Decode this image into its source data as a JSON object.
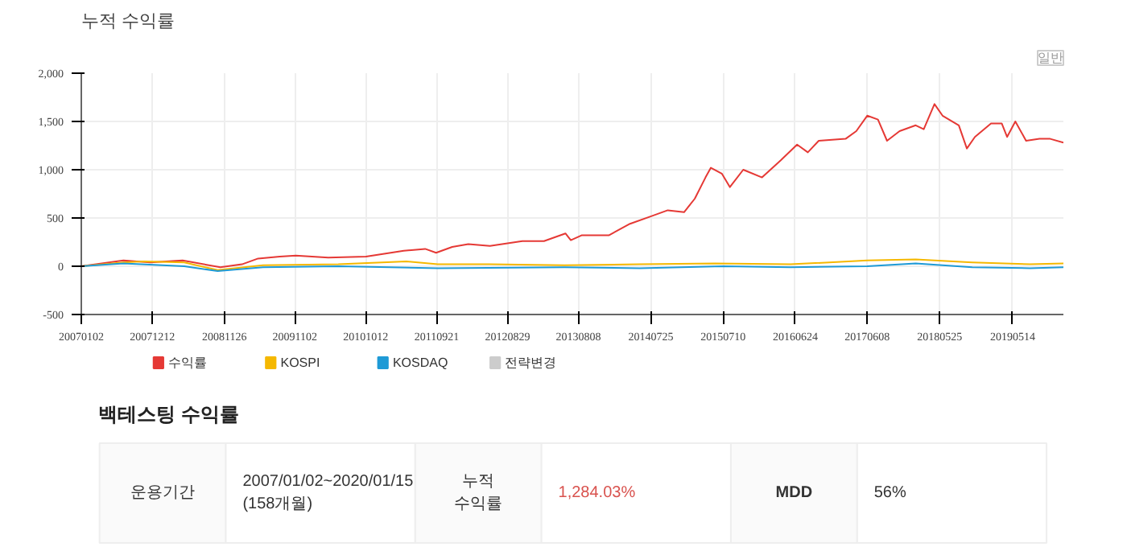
{
  "chart_data": {
    "type": "line",
    "title": "누적 수익률",
    "xlim": [
      "2007-01-02",
      "2020-01-15"
    ],
    "xticks": [
      {
        "value": "2007-01-02",
        "label": "20070102"
      },
      {
        "value": "2007-12-12",
        "label": "20071212"
      },
      {
        "value": "2008-11-26",
        "label": "20081126"
      },
      {
        "value": "2009-11-02",
        "label": "20091102"
      },
      {
        "value": "2010-10-12",
        "label": "20101012"
      },
      {
        "value": "2011-09-21",
        "label": "20110921"
      },
      {
        "value": "2012-08-29",
        "label": "20120829"
      },
      {
        "value": "2013-08-08",
        "label": "20130808"
      },
      {
        "value": "2014-07-25",
        "label": "20140725"
      },
      {
        "value": "2015-07-10",
        "label": "20150710"
      },
      {
        "value": "2016-06-24",
        "label": "20160624"
      },
      {
        "value": "2017-06-08",
        "label": "20170608"
      },
      {
        "value": "2018-05-25",
        "label": "20180525"
      },
      {
        "value": "2019-05-14",
        "label": "20190514"
      }
    ],
    "ylim": [
      -500,
      2000
    ],
    "yticks": [
      {
        "value": -500,
        "label": "-500"
      },
      {
        "value": 0,
        "label": "0"
      },
      {
        "value": 500,
        "label": "500"
      },
      {
        "value": 1000,
        "label": "1,000"
      },
      {
        "value": 1500,
        "label": "1,500"
      },
      {
        "value": 2000,
        "label": "2,000"
      }
    ],
    "grid": true,
    "legend": "bottom",
    "line_style": "solid",
    "marker": "none",
    "series": [
      {
        "name": "수익률",
        "color": "#e53935",
        "x": [
          "2007-01-02",
          "2007-07-25",
          "2007-12-02",
          "2008-05-07",
          "2008-11-06",
          "2009-02-19",
          "2009-05-08",
          "2009-08-21",
          "2009-11-07",
          "2010-04-13",
          "2010-10-13",
          "2011-04-14",
          "2011-07-27",
          "2011-09-18",
          "2011-12-05",
          "2012-02-21",
          "2012-06-05",
          "2012-11-09",
          "2013-02-22",
          "2013-06-06",
          "2013-07-02",
          "2013-08-23",
          "2014-01-02",
          "2014-04-15",
          "2014-07-29",
          "2014-10-15",
          "2015-01-02",
          "2015-02-23",
          "2015-04-16",
          "2015-05-12",
          "2015-07-04",
          "2015-08-12",
          "2015-10-16",
          "2016-01-15",
          "2016-04-16",
          "2016-07-03",
          "2016-08-24",
          "2016-10-16",
          "2017-02-23",
          "2017-04-16",
          "2017-06-08",
          "2017-07-30",
          "2017-09-12",
          "2017-11-12",
          "2018-01-29",
          "2018-03-09",
          "2018-04-30",
          "2018-06-08",
          "2018-08-26",
          "2018-10-04",
          "2018-11-12",
          "2019-01-29",
          "2019-03-22",
          "2019-04-17",
          "2019-05-27",
          "2019-07-18",
          "2019-09-21",
          "2019-11-12",
          "2020-01-15"
        ],
        "values": [
          0,
          60,
          40,
          60,
          -10,
          20,
          80,
          100,
          110,
          90,
          100,
          160,
          180,
          140,
          200,
          230,
          210,
          260,
          260,
          340,
          270,
          320,
          320,
          440,
          520,
          580,
          560,
          700,
          920,
          1020,
          960,
          820,
          1000,
          920,
          1100,
          1260,
          1180,
          1300,
          1320,
          1400,
          1560,
          1520,
          1300,
          1400,
          1460,
          1420,
          1680,
          1560,
          1460,
          1220,
          1340,
          1480,
          1480,
          1340,
          1500,
          1300,
          1320,
          1320,
          1280
        ]
      },
      {
        "name": "KOSPI",
        "color": "#f5b800",
        "x": [
          "2007-01-02",
          "2007-07-25",
          "2007-10-31",
          "2008-05-15",
          "2008-10-24",
          "2009-06-01",
          "2010-06-01",
          "2011-04-27",
          "2011-09-26",
          "2012-06-01",
          "2013-06-01",
          "2014-06-01",
          "2015-06-01",
          "2016-06-01",
          "2017-06-08",
          "2018-01-29",
          "2018-10-30",
          "2019-08-06",
          "2020-01-15"
        ],
        "values": [
          0,
          40,
          50,
          40,
          -40,
          10,
          20,
          50,
          20,
          20,
          10,
          20,
          30,
          20,
          60,
          70,
          40,
          20,
          30
        ]
      },
      {
        "name": "KOSDAQ",
        "color": "#1e9ad6",
        "x": [
          "2007-01-02",
          "2007-07-25",
          "2008-05-15",
          "2008-10-24",
          "2009-06-01",
          "2010-06-01",
          "2011-09-26",
          "2013-06-01",
          "2014-06-01",
          "2015-07-10",
          "2016-06-01",
          "2017-06-08",
          "2018-01-29",
          "2018-10-30",
          "2019-08-06",
          "2020-01-15"
        ],
        "values": [
          0,
          30,
          0,
          -50,
          -10,
          0,
          -20,
          -10,
          -20,
          0,
          -10,
          0,
          30,
          -10,
          -20,
          -10
        ]
      },
      {
        "name": "전략변경",
        "color": "#cccccc"
      }
    ],
    "annotations": [
      "일반",
      "백테스팅 수익률",
      "운용기간",
      "2007/01/02~2020/01/15\n(158개월)",
      "누적\n수익률",
      "1,284.03%",
      "MDD",
      "56%"
    ]
  }
}
